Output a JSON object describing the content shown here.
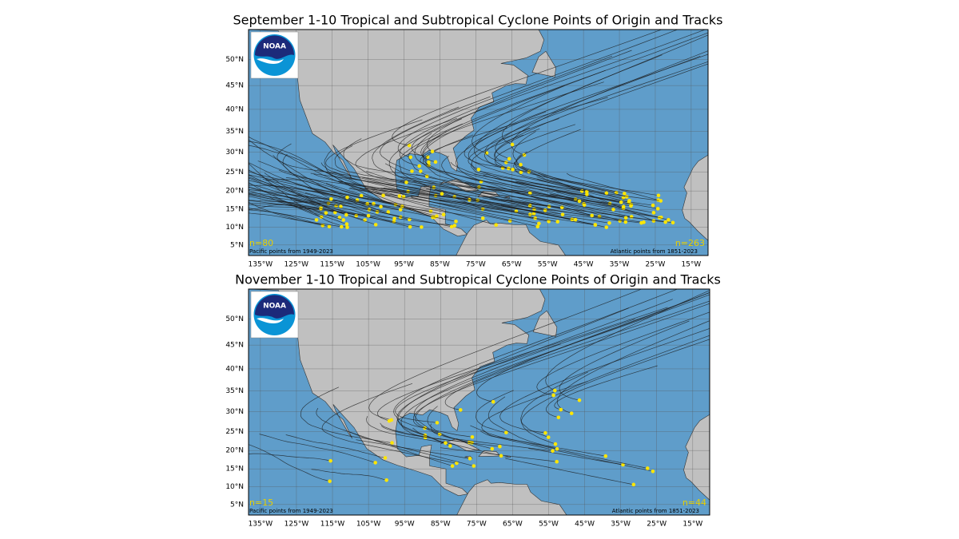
{
  "logo_text": "NOAA",
  "panels": [
    {
      "title": "September 1-10 Tropical and Subtropical Cyclone Points of Origin and Tracks",
      "n_pacific": "n=80",
      "n_atlantic": "n=263",
      "pacific_note": "Pacific points from 1949-2023",
      "atlantic_note": "Atlantic points from 1851-2023",
      "xlim": [
        -138.3,
        -10.3
      ],
      "ylim": [
        2,
        55.2
      ],
      "xticks": [
        {
          "value": -135,
          "label": "135°W"
        },
        {
          "value": -125,
          "label": "125°W"
        },
        {
          "value": -115,
          "label": "115°W"
        },
        {
          "value": -105,
          "label": "105°W"
        },
        {
          "value": -95,
          "label": "95°W"
        },
        {
          "value": -85,
          "label": "85°W"
        },
        {
          "value": -75,
          "label": "75°W"
        },
        {
          "value": -65,
          "label": "65°W"
        },
        {
          "value": -55,
          "label": "55°W"
        },
        {
          "value": -45,
          "label": "45°W"
        },
        {
          "value": -35,
          "label": "35°W"
        },
        {
          "value": -25,
          "label": "25°W"
        },
        {
          "value": -15,
          "label": "15°W"
        }
      ],
      "yticks": [
        {
          "value": 5,
          "label": "5°N"
        },
        {
          "value": 10,
          "label": "10°N"
        },
        {
          "value": 15,
          "label": "15°N"
        },
        {
          "value": 20,
          "label": "20°N"
        },
        {
          "value": 25,
          "label": "25°N"
        },
        {
          "value": 30,
          "label": "30°N"
        },
        {
          "value": 35,
          "label": "35°N"
        },
        {
          "value": 40,
          "label": "40°N"
        },
        {
          "value": 45,
          "label": "45°N"
        },
        {
          "value": 50,
          "label": "50°N"
        }
      ]
    },
    {
      "title": "November 1-10 Tropical and Subtropical Cyclone Points of Origin and Tracks",
      "n_pacific": "n=15",
      "n_atlantic": "n=44",
      "pacific_note": "Pacific points from 1949-2023",
      "atlantic_note": "Atlantic points from 1851-2023",
      "xlim": [
        -138.3,
        -10.3
      ],
      "ylim": [
        2,
        55.2
      ],
      "xticks": [
        {
          "value": -135,
          "label": "135°W"
        },
        {
          "value": -125,
          "label": "125°W"
        },
        {
          "value": -115,
          "label": "115°W"
        },
        {
          "value": -105,
          "label": "105°W"
        },
        {
          "value": -95,
          "label": "95°W"
        },
        {
          "value": -85,
          "label": "85°W"
        },
        {
          "value": -75,
          "label": "75°W"
        },
        {
          "value": -65,
          "label": "65°W"
        },
        {
          "value": -55,
          "label": "55°W"
        },
        {
          "value": -45,
          "label": "45°W"
        },
        {
          "value": -35,
          "label": "35°W"
        },
        {
          "value": -25,
          "label": "25°W"
        },
        {
          "value": -15,
          "label": "15°W"
        }
      ],
      "yticks": [
        {
          "value": 5,
          "label": "5°N"
        },
        {
          "value": 10,
          "label": "10°N"
        },
        {
          "value": 15,
          "label": "15°N"
        },
        {
          "value": 20,
          "label": "20°N"
        },
        {
          "value": 25,
          "label": "25°N"
        },
        {
          "value": 30,
          "label": "30°N"
        },
        {
          "value": 35,
          "label": "35°N"
        },
        {
          "value": 40,
          "label": "40°N"
        },
        {
          "value": 45,
          "label": "45°N"
        },
        {
          "value": 50,
          "label": "50°N"
        }
      ]
    }
  ]
}
